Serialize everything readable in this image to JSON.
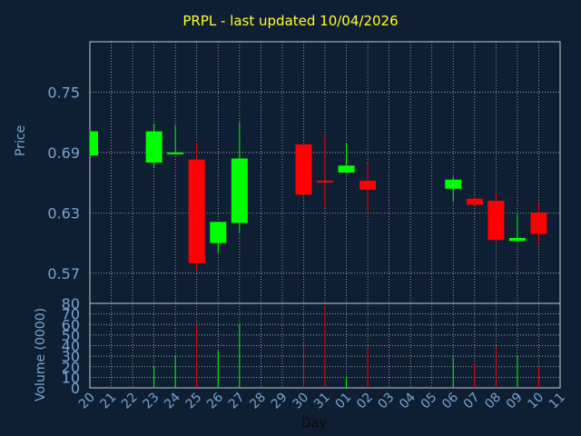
{
  "chart_data": [
    {
      "type": "candlestick",
      "title": "PRPL - last updated 10/04/2026",
      "ylabel": "Price",
      "xlabel": "Day",
      "ylim": [
        0.54,
        0.8
      ],
      "yticks": [
        0.57,
        0.63,
        0.69,
        0.75
      ],
      "ytick_labels": [
        "0.57",
        "0.63",
        "0.69",
        "0.75"
      ],
      "grid": true,
      "x_tick_labels": [
        "20",
        "21",
        "22",
        "23",
        "24",
        "25",
        "26",
        "27",
        "28",
        "29",
        "30",
        "31",
        "01",
        "02",
        "03",
        "04",
        "05",
        "06",
        "07",
        "08",
        "09",
        "10",
        "11"
      ],
      "candles": [
        {
          "x": "20",
          "open": 0.687,
          "close": 0.711,
          "high": 0.711,
          "low": 0.687,
          "color": "#00ff00"
        },
        {
          "x": "23",
          "open": 0.68,
          "close": 0.711,
          "high": 0.719,
          "low": 0.675,
          "color": "#00ff00"
        },
        {
          "x": "24",
          "open": 0.689,
          "close": 0.69,
          "high": 0.717,
          "low": 0.689,
          "color": "#00ff00"
        },
        {
          "x": "25",
          "open": 0.683,
          "close": 0.58,
          "high": 0.7,
          "low": 0.572,
          "color": "#ff0000"
        },
        {
          "x": "26",
          "open": 0.6,
          "close": 0.621,
          "high": 0.621,
          "low": 0.59,
          "color": "#00ff00"
        },
        {
          "x": "27",
          "open": 0.62,
          "close": 0.684,
          "high": 0.72,
          "low": 0.61,
          "color": "#00ff00"
        },
        {
          "x": "30",
          "open": 0.698,
          "close": 0.648,
          "high": 0.698,
          "low": 0.648,
          "color": "#ff0000"
        },
        {
          "x": "31",
          "open": 0.662,
          "close": 0.661,
          "high": 0.707,
          "low": 0.635,
          "color": "#ff0000"
        },
        {
          "x": "01",
          "open": 0.67,
          "close": 0.677,
          "high": 0.699,
          "low": 0.67,
          "color": "#00ff00"
        },
        {
          "x": "02",
          "open": 0.662,
          "close": 0.653,
          "high": 0.68,
          "low": 0.63,
          "color": "#ff0000"
        },
        {
          "x": "06",
          "open": 0.654,
          "close": 0.663,
          "high": 0.666,
          "low": 0.641,
          "color": "#00ff00"
        },
        {
          "x": "07",
          "open": 0.644,
          "close": 0.638,
          "high": 0.646,
          "low": 0.638,
          "color": "#ff0000"
        },
        {
          "x": "08",
          "open": 0.642,
          "close": 0.603,
          "high": 0.649,
          "low": 0.603,
          "color": "#ff0000"
        },
        {
          "x": "09",
          "open": 0.602,
          "close": 0.605,
          "high": 0.628,
          "low": 0.602,
          "color": "#00ff00"
        },
        {
          "x": "10",
          "open": 0.63,
          "close": 0.609,
          "high": 0.64,
          "low": 0.599,
          "color": "#ff0000"
        }
      ]
    },
    {
      "type": "bar",
      "ylabel": "Volume (0000)",
      "xlabel": "Day",
      "ylim": [
        0,
        80
      ],
      "yticks": [
        0,
        10,
        20,
        30,
        40,
        50,
        60,
        70,
        80
      ],
      "ytick_labels": [
        "0",
        "10",
        "20",
        "30",
        "40",
        "50",
        "60",
        "70",
        "80"
      ],
      "grid": true,
      "bars": [
        {
          "x": "23",
          "value": 20,
          "color": "#00ff00"
        },
        {
          "x": "24",
          "value": 30,
          "color": "#00ff00"
        },
        {
          "x": "25",
          "value": 59,
          "color": "#ff0000"
        },
        {
          "x": "26",
          "value": 35,
          "color": "#00ff00"
        },
        {
          "x": "27",
          "value": 60,
          "color": "#00ff00"
        },
        {
          "x": "30",
          "value": 44,
          "color": "#ff0000"
        },
        {
          "x": "31",
          "value": 77,
          "color": "#ff0000"
        },
        {
          "x": "01",
          "value": 11,
          "color": "#00ff00"
        },
        {
          "x": "02",
          "value": 39,
          "color": "#ff0000"
        },
        {
          "x": "06",
          "value": 29,
          "color": "#00ff00"
        },
        {
          "x": "07",
          "value": 23,
          "color": "#ff0000"
        },
        {
          "x": "08",
          "value": 38,
          "color": "#ff0000"
        },
        {
          "x": "09",
          "value": 30,
          "color": "#00ff00"
        },
        {
          "x": "10",
          "value": 19,
          "color": "#ff0000"
        }
      ]
    }
  ],
  "colors": {
    "background": "#0f1f33",
    "axis_text": "#7aa3cf",
    "title": "#ffff2e",
    "grid": "#c8c8c8",
    "up": "#00ff00",
    "down": "#ff0000"
  }
}
